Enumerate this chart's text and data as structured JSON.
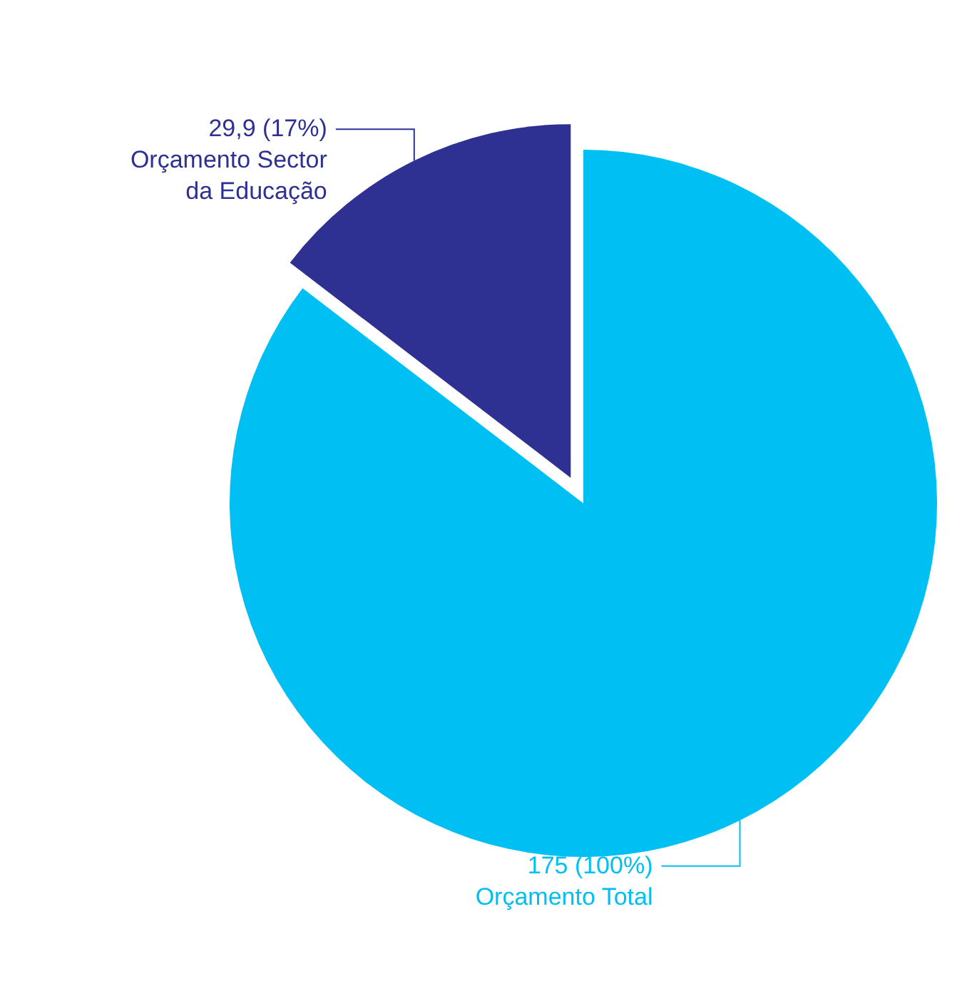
{
  "chart_data": {
    "type": "pie",
    "categories": [
      "Orçamento Sector da Educação",
      "Orçamento Total"
    ],
    "values": [
      29.9,
      175
    ],
    "value_labels": [
      "29,9 (17%)",
      "175 (100%)"
    ],
    "colors": [
      "#2e3192",
      "#00bff3"
    ]
  }
}
